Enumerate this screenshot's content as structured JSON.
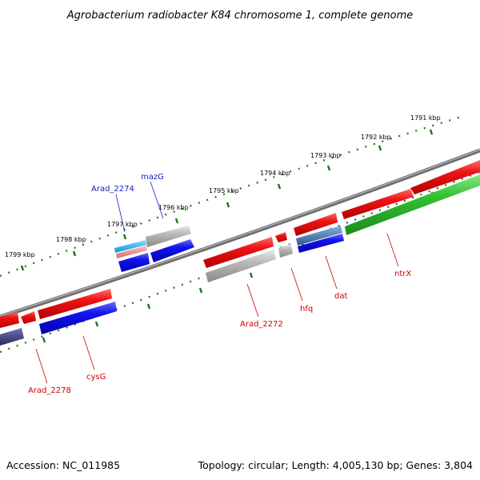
{
  "title": "Agrobacterium radiobacter K84 chromosome 1, complete genome",
  "footer": {
    "accession": "Accession: NC_011985",
    "summary": "Topology: circular; Length: 4,005,130 bp; Genes: 3,804"
  },
  "ticks": [
    "1791 kbp",
    "1792 kbp",
    "1793 kbp",
    "1794 kbp",
    "1795 kbp",
    "1796 kbp",
    "1797 kbp",
    "1798 kbp",
    "1799 kbp"
  ],
  "gene_labels": {
    "arad_2274": "Arad_2274",
    "mazg": "mazG",
    "arad_2272": "Arad_2272",
    "hfq": "hfq",
    "dat": "dat",
    "ntrx": "ntrX",
    "arad_2278": "Arad_2278",
    "cysg": "cysG"
  },
  "colors": {
    "red": "#e81010",
    "blue": "#1010e0",
    "green": "#30c030",
    "gray": "#b4b4b4",
    "cyan": "#20b8e8",
    "pink": "#e88c8c",
    "slate": "#4a78b0",
    "navy": "#404080",
    "backbone": "#808080",
    "tickmark": "#207020"
  }
}
